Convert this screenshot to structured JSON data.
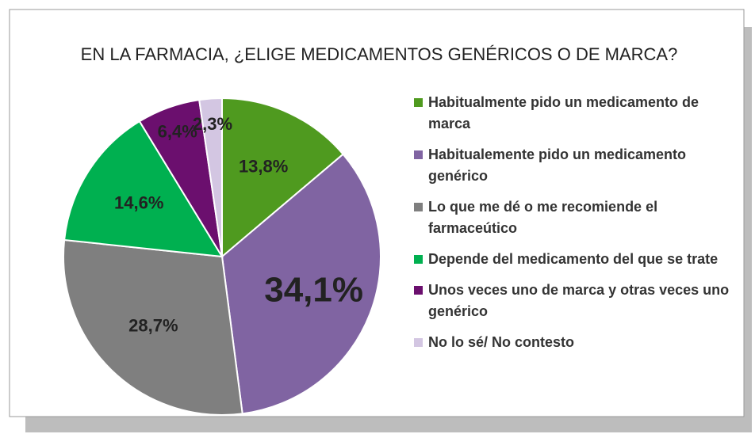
{
  "chart_data": {
    "type": "pie",
    "title": "EN LA FARMACIA, ¿ELIGE MEDICAMENTOS  GENÉRICOS O DE MARCA?",
    "categories": [
      "Habitualmente pido un medicamento de marca",
      "Habitualemente pido un medicamento genérico",
      "Lo que me dé o me recomiende el farmaceútico",
      "Depende del medicamento del que se trate",
      "Unos veces uno de marca y otras veces uno genérico",
      "No lo sé/ No contesto"
    ],
    "values": [
      13.8,
      34.1,
      28.7,
      14.6,
      6.4,
      2.3
    ],
    "value_labels": [
      "13,8%",
      "34,1%",
      "28,7%",
      "14,6%",
      "6,4%",
      "2,3%"
    ],
    "colors": [
      "#4f9a1f",
      "#8064a2",
      "#7f7f7f",
      "#00b050",
      "#6b0f6e",
      "#d3c6e2"
    ],
    "legend": "right"
  }
}
